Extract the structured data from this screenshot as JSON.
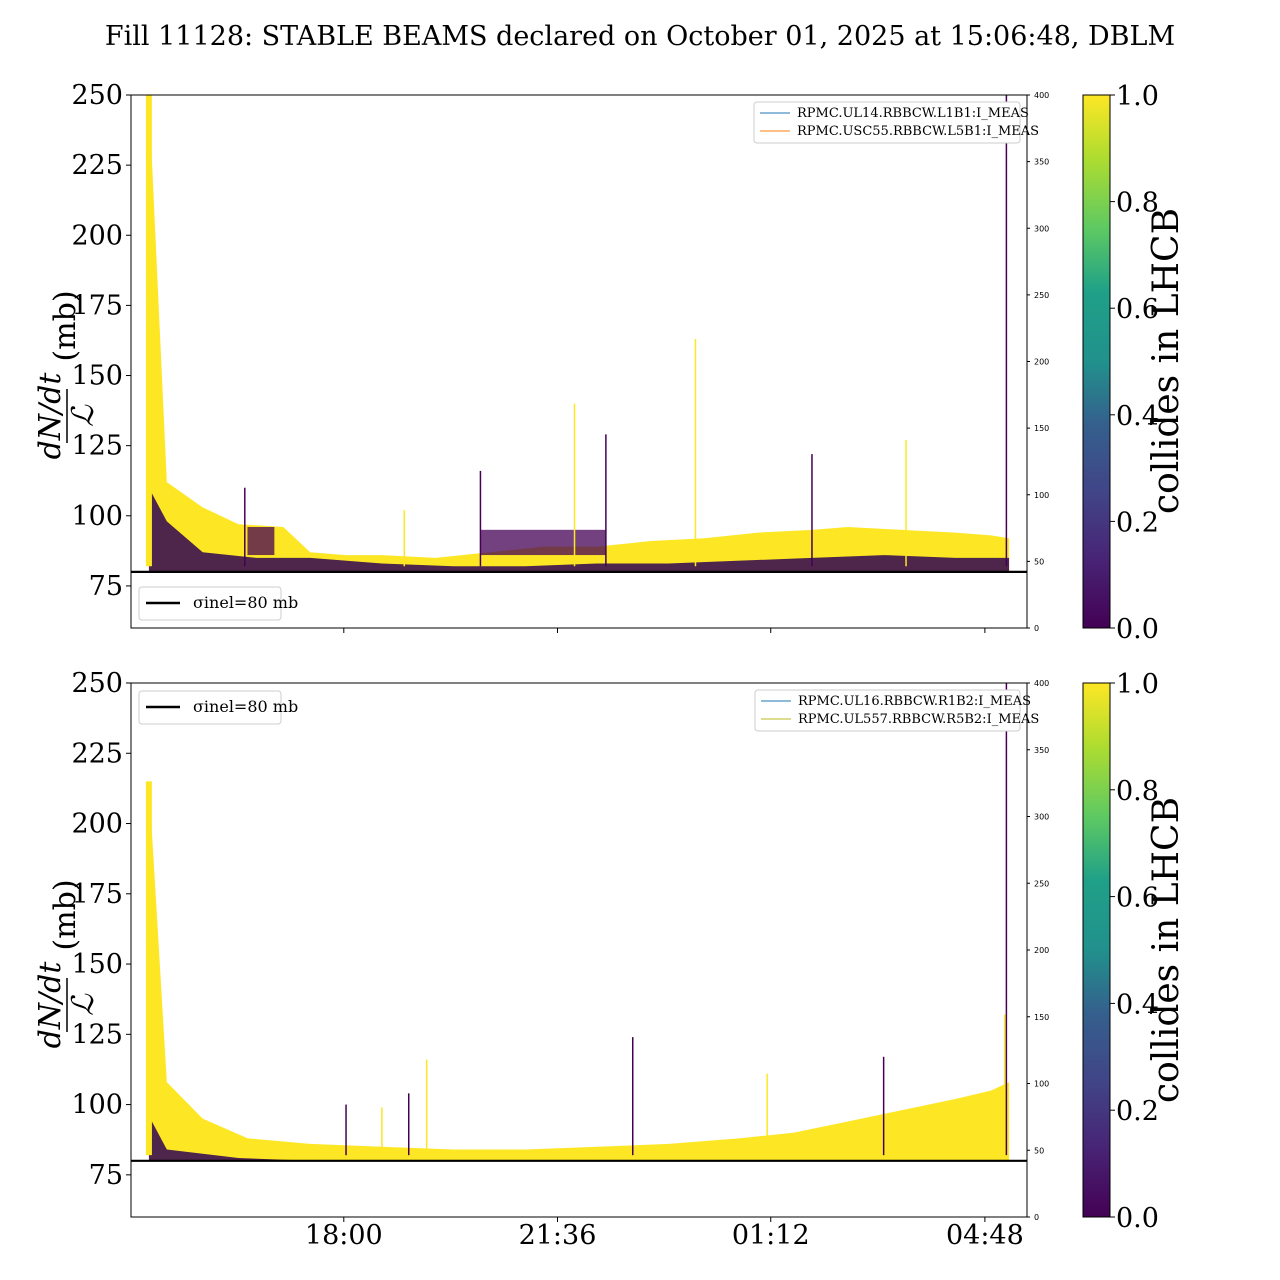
{
  "title": "Fill 11128: STABLE BEAMS declared on October 01, 2025 at 15:06:48, DBLM",
  "colors": {
    "yellow": "#fde725",
    "purple": "#440154",
    "darkpurple": "#3b0f50",
    "line_blue": "#1f77b4",
    "line_orange": "#ff7f0e",
    "line_olive": "#bcbd22",
    "threshold": "#000000"
  },
  "chart_data": [
    {
      "type": "scatter",
      "name": "top",
      "ylabel": "dN/dt / ℒ (mb)",
      "ylabel_num": "dN/dt",
      "ylabel_den": "ℒ",
      "ylabel_unit": "(mb)",
      "ylim": [
        60,
        250
      ],
      "yticks": [
        "75",
        "100",
        "125",
        "150",
        "175",
        "200",
        "225",
        "250"
      ],
      "y2lim": [
        0,
        400
      ],
      "y2ticks": [
        "0",
        "50",
        "100",
        "150",
        "200",
        "250",
        "300",
        "350",
        "400"
      ],
      "xticks": [],
      "grid": false,
      "threshold": {
        "label": "σinel=80 mb",
        "value": 80
      },
      "legend_lines": [
        {
          "label": "RPMC.UL14.RBBCW.L1B1:I_MEAS",
          "color": "#1f77b4"
        },
        {
          "label": "RPMC.USC55.RBBCW.L5B1:I_MEAS",
          "color": "#ff7f0e"
        }
      ],
      "legend_position": "top-right",
      "threshold_legend_position": "bottom-left",
      "colorbar": {
        "label": "collides in LHCB",
        "ticks": [
          "0.0",
          "0.2",
          "0.4",
          "0.6",
          "0.8",
          "1.0"
        ],
        "range": [
          0,
          1
        ]
      },
      "yellow_band_upper": [
        [
          0.02,
          250
        ],
        [
          0.04,
          112
        ],
        [
          0.08,
          103
        ],
        [
          0.12,
          97
        ],
        [
          0.17,
          96
        ],
        [
          0.2,
          87
        ],
        [
          0.24,
          86
        ],
        [
          0.28,
          86
        ],
        [
          0.34,
          85
        ],
        [
          0.4,
          87
        ],
        [
          0.46,
          89
        ],
        [
          0.52,
          89
        ],
        [
          0.58,
          91
        ],
        [
          0.64,
          92
        ],
        [
          0.7,
          94
        ],
        [
          0.76,
          95
        ],
        [
          0.8,
          96
        ],
        [
          0.86,
          95
        ],
        [
          0.92,
          94
        ],
        [
          0.96,
          93
        ],
        [
          0.98,
          92
        ]
      ],
      "yellow_band_lower": [
        [
          0.02,
          80
        ],
        [
          0.98,
          80
        ]
      ],
      "purple_upper": [
        [
          0.02,
          110
        ],
        [
          0.04,
          98
        ],
        [
          0.08,
          87
        ],
        [
          0.14,
          85
        ],
        [
          0.2,
          85
        ],
        [
          0.28,
          83
        ],
        [
          0.36,
          82
        ],
        [
          0.44,
          82
        ],
        [
          0.52,
          83
        ],
        [
          0.6,
          83
        ],
        [
          0.68,
          84
        ],
        [
          0.76,
          85
        ],
        [
          0.84,
          86
        ],
        [
          0.92,
          85
        ],
        [
          0.98,
          85
        ]
      ],
      "purple_patches": [
        [
          0.13,
          0.16,
          86,
          96
        ],
        [
          0.39,
          0.53,
          86,
          95
        ]
      ],
      "spikes": [
        [
          0.02,
          250
        ],
        [
          0.127,
          110
        ],
        [
          0.305,
          102
        ],
        [
          0.39,
          116
        ],
        [
          0.495,
          140
        ],
        [
          0.53,
          129
        ],
        [
          0.63,
          163
        ],
        [
          0.76,
          122
        ],
        [
          0.865,
          127
        ],
        [
          0.977,
          250
        ]
      ]
    },
    {
      "type": "scatter",
      "name": "bottom",
      "ylabel": "dN/dt / ℒ (mb)",
      "ylabel_num": "dN/dt",
      "ylabel_den": "ℒ",
      "ylabel_unit": "(mb)",
      "ylim": [
        60,
        250
      ],
      "yticks": [
        "75",
        "100",
        "125",
        "150",
        "175",
        "200",
        "225",
        "250"
      ],
      "y2lim": [
        0,
        400
      ],
      "y2ticks": [
        "0",
        "50",
        "100",
        "150",
        "200",
        "250",
        "300",
        "350",
        "400"
      ],
      "xticks": [
        "18:00",
        "21:36",
        "01:12",
        "04:48"
      ],
      "grid": false,
      "threshold": {
        "label": "σinel=80 mb",
        "value": 80
      },
      "legend_lines": [
        {
          "label": "RPMC.UL16.RBBCW.R1B2:I_MEAS",
          "color": "#1f77b4"
        },
        {
          "label": "RPMC.UL557.RBBCW.R5B2:I_MEAS",
          "color": "#bcbd22"
        }
      ],
      "legend_position": "top-right",
      "threshold_legend_position": "top-left",
      "colorbar": {
        "label": "collides in LHCB",
        "ticks": [
          "0.0",
          "0.2",
          "0.4",
          "0.6",
          "0.8",
          "1.0"
        ],
        "range": [
          0,
          1
        ]
      },
      "yellow_band_upper": [
        [
          0.02,
          215
        ],
        [
          0.04,
          108
        ],
        [
          0.08,
          95
        ],
        [
          0.13,
          88
        ],
        [
          0.2,
          86
        ],
        [
          0.28,
          85
        ],
        [
          0.36,
          84
        ],
        [
          0.44,
          84
        ],
        [
          0.52,
          85
        ],
        [
          0.6,
          86
        ],
        [
          0.68,
          88
        ],
        [
          0.74,
          90
        ],
        [
          0.8,
          94
        ],
        [
          0.86,
          98
        ],
        [
          0.92,
          102
        ],
        [
          0.96,
          105
        ],
        [
          0.98,
          108
        ]
      ],
      "yellow_band_lower": [
        [
          0.02,
          80
        ],
        [
          0.98,
          80
        ]
      ],
      "purple_upper": [
        [
          0.02,
          96
        ],
        [
          0.04,
          84
        ],
        [
          0.12,
          81
        ],
        [
          0.2,
          80
        ]
      ],
      "purple_patches": [],
      "spikes": [
        [
          0.02,
          215
        ],
        [
          0.24,
          100
        ],
        [
          0.28,
          99
        ],
        [
          0.31,
          104
        ],
        [
          0.33,
          116
        ],
        [
          0.56,
          124
        ],
        [
          0.71,
          111
        ],
        [
          0.84,
          117
        ],
        [
          0.975,
          132
        ],
        [
          0.977,
          250
        ]
      ]
    }
  ]
}
